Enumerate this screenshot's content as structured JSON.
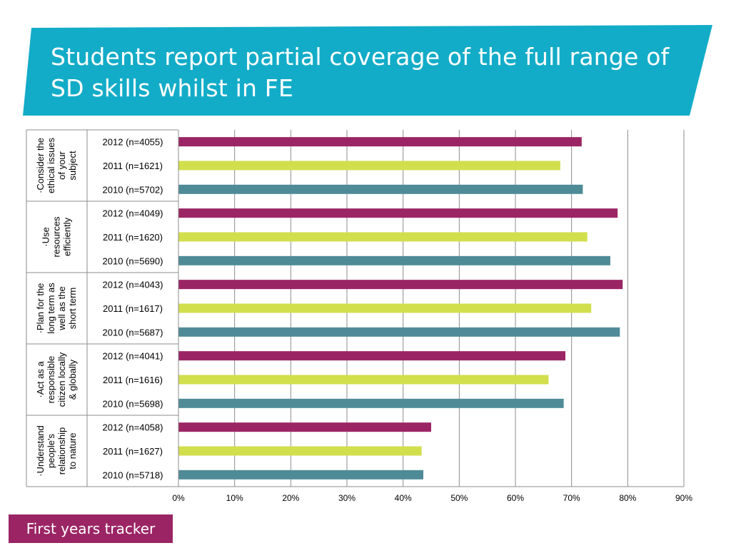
{
  "title": "Students report partial coverage of the full range of SD skills whilst in FE",
  "footer_label": "First years tracker",
  "colors": {
    "banner": "#13acc8",
    "2012": "#9b2564",
    "2011": "#d2df4d",
    "2010": "#4f8b97",
    "footer": "#9b2564"
  },
  "chart_data": {
    "type": "bar",
    "orientation": "horizontal",
    "xlim": [
      0,
      90
    ],
    "xticks": [
      "0%",
      "10%",
      "20%",
      "30%",
      "40%",
      "50%",
      "60%",
      "70%",
      "80%",
      "90%"
    ],
    "grid": true,
    "groups": [
      {
        "label": "·Consider the ethical issues of your subject",
        "label_lines": [
          "·Consider the",
          "ethical issues",
          "of your",
          "subject"
        ],
        "bars": [
          {
            "label": "2012 (n=4055)",
            "year": "2012",
            "value": 71.8
          },
          {
            "label": "2011 (n=1621)",
            "year": "2011",
            "value": 68.0
          },
          {
            "label": "2010 (n=5702)",
            "year": "2010",
            "value": 72.0
          }
        ]
      },
      {
        "label": "·Use resources efficiently",
        "label_lines": [
          "·Use",
          "resources",
          "efficiently"
        ],
        "bars": [
          {
            "label": "2012 (n=4049)",
            "year": "2012",
            "value": 78.2
          },
          {
            "label": "2011 (n=1620)",
            "year": "2011",
            "value": 72.8
          },
          {
            "label": "2010 (n=5690)",
            "year": "2010",
            "value": 76.9
          }
        ]
      },
      {
        "label": "·Plan for the long term as well as the short term",
        "label_lines": [
          "·Plan for the",
          "long term as",
          "well as the",
          "short term"
        ],
        "bars": [
          {
            "label": "2012 (n=4043)",
            "year": "2012",
            "value": 79.1
          },
          {
            "label": "2011 (n=1617)",
            "year": "2011",
            "value": 73.5
          },
          {
            "label": "2010 (n=5687)",
            "year": "2010",
            "value": 78.6
          }
        ]
      },
      {
        "label": "·Act as a responsible citizen locally & globally",
        "label_lines": [
          "·Act as a",
          "responsible",
          "citizen locally",
          "& globally"
        ],
        "bars": [
          {
            "label": "2012 (n=4041)",
            "year": "2012",
            "value": 68.9
          },
          {
            "label": "2011 (n=1616)",
            "year": "2011",
            "value": 65.9
          },
          {
            "label": "2010 (n=5698)",
            "year": "2010",
            "value": 68.6
          }
        ]
      },
      {
        "label": "·Understand people's relationship to nature",
        "label_lines": [
          "·Understand",
          "people's",
          "relationship",
          "to nature"
        ],
        "bars": [
          {
            "label": "2012 (n=4058)",
            "year": "2012",
            "value": 45.0
          },
          {
            "label": "2011 (n=1627)",
            "year": "2011",
            "value": 43.3
          },
          {
            "label": "2010 (n=5718)",
            "year": "2010",
            "value": 43.6
          }
        ]
      }
    ]
  }
}
